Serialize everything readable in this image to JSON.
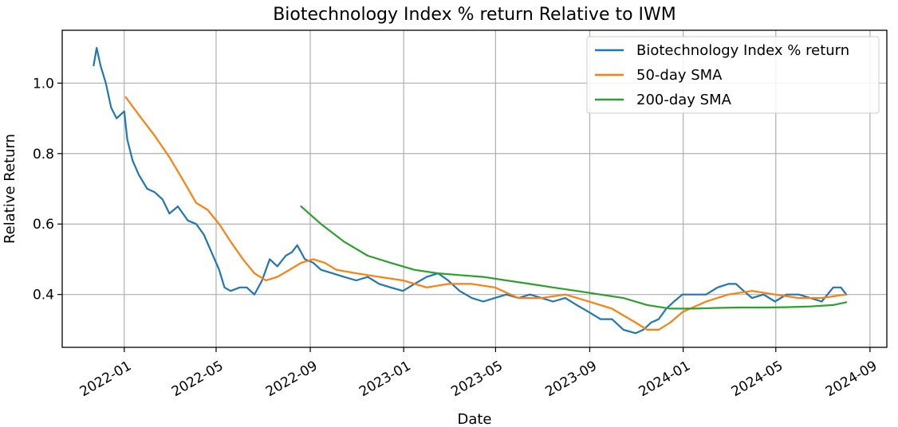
{
  "chart_data": {
    "type": "line",
    "title": "Biotechnology Index % return Relative to IWM",
    "xlabel": "Date",
    "ylabel": "Relative Return",
    "x_ticks": [
      "2022-01",
      "2022-05",
      "2022-09",
      "2023-01",
      "2023-05",
      "2023-09",
      "2024-01",
      "2024-05",
      "2024-09"
    ],
    "y_ticks": [
      0.4,
      0.6,
      0.8,
      1.0
    ],
    "xlim": [
      "2021-10-12",
      "2024-09-23"
    ],
    "ylim": [
      0.25,
      1.15
    ],
    "grid": true,
    "legend_position": "upper-right",
    "colors": {
      "Biotechnology Index % return": "#1f77b4",
      "50-day SMA": "#ff7f0e",
      "200-day SMA": "#2ca02c"
    },
    "series": [
      {
        "name": "Biotechnology Index % return",
        "x": [
          "2021-11-22",
          "2021-11-26",
          "2021-12-01",
          "2021-12-08",
          "2021-12-15",
          "2021-12-22",
          "2022-01-01",
          "2022-01-05",
          "2022-01-12",
          "2022-01-20",
          "2022-01-31",
          "2022-02-10",
          "2022-02-20",
          "2022-03-01",
          "2022-03-12",
          "2022-03-25",
          "2022-04-05",
          "2022-04-15",
          "2022-04-25",
          "2022-05-05",
          "2022-05-12",
          "2022-05-20",
          "2022-06-01",
          "2022-06-10",
          "2022-06-20",
          "2022-06-30",
          "2022-07-10",
          "2022-07-20",
          "2022-07-31",
          "2022-08-08",
          "2022-08-15",
          "2022-08-25",
          "2022-09-05",
          "2022-09-15",
          "2022-09-30",
          "2022-10-15",
          "2022-10-31",
          "2022-11-15",
          "2022-11-30",
          "2022-12-15",
          "2022-12-31",
          "2023-01-15",
          "2023-01-31",
          "2023-02-15",
          "2023-02-28",
          "2023-03-15",
          "2023-03-31",
          "2023-04-15",
          "2023-04-30",
          "2023-05-15",
          "2023-05-31",
          "2023-06-15",
          "2023-06-30",
          "2023-07-15",
          "2023-07-31",
          "2023-08-15",
          "2023-08-31",
          "2023-09-15",
          "2023-09-30",
          "2023-10-15",
          "2023-10-31",
          "2023-11-10",
          "2023-11-20",
          "2023-11-30",
          "2023-12-10",
          "2023-12-20",
          "2023-12-31",
          "2024-01-15",
          "2024-01-31",
          "2024-02-15",
          "2024-02-29",
          "2024-03-10",
          "2024-03-20",
          "2024-03-31",
          "2024-04-15",
          "2024-04-30",
          "2024-05-15",
          "2024-05-31",
          "2024-06-15",
          "2024-06-30",
          "2024-07-15",
          "2024-07-25",
          "2024-08-01"
        ],
        "values": [
          1.05,
          1.1,
          1.05,
          1.0,
          0.93,
          0.9,
          0.92,
          0.84,
          0.78,
          0.74,
          0.7,
          0.69,
          0.67,
          0.63,
          0.65,
          0.61,
          0.6,
          0.57,
          0.52,
          0.47,
          0.42,
          0.41,
          0.42,
          0.42,
          0.4,
          0.44,
          0.5,
          0.48,
          0.51,
          0.52,
          0.54,
          0.5,
          0.49,
          0.47,
          0.46,
          0.45,
          0.44,
          0.45,
          0.43,
          0.42,
          0.41,
          0.43,
          0.45,
          0.46,
          0.44,
          0.41,
          0.39,
          0.38,
          0.39,
          0.4,
          0.39,
          0.4,
          0.39,
          0.38,
          0.39,
          0.37,
          0.35,
          0.33,
          0.33,
          0.3,
          0.29,
          0.3,
          0.32,
          0.33,
          0.36,
          0.38,
          0.4,
          0.4,
          0.4,
          0.42,
          0.43,
          0.43,
          0.41,
          0.39,
          0.4,
          0.38,
          0.4,
          0.4,
          0.39,
          0.38,
          0.42,
          0.42,
          0.4
        ]
      },
      {
        "name": "50-day SMA",
        "x": [
          "2022-01-03",
          "2022-01-20",
          "2022-02-10",
          "2022-03-01",
          "2022-03-20",
          "2022-04-05",
          "2022-04-20",
          "2022-05-05",
          "2022-05-20",
          "2022-06-05",
          "2022-06-20",
          "2022-07-05",
          "2022-07-20",
          "2022-08-05",
          "2022-08-20",
          "2022-09-05",
          "2022-09-20",
          "2022-10-05",
          "2022-10-31",
          "2022-11-30",
          "2022-12-31",
          "2023-01-31",
          "2023-02-28",
          "2023-03-31",
          "2023-04-30",
          "2023-05-31",
          "2023-06-30",
          "2023-07-31",
          "2023-08-31",
          "2023-09-30",
          "2023-10-31",
          "2023-11-15",
          "2023-11-30",
          "2023-12-15",
          "2023-12-31",
          "2024-01-31",
          "2024-02-29",
          "2024-03-31",
          "2024-04-30",
          "2024-05-31",
          "2024-06-30",
          "2024-07-31"
        ],
        "values": [
          0.96,
          0.91,
          0.85,
          0.79,
          0.72,
          0.66,
          0.64,
          0.6,
          0.55,
          0.5,
          0.46,
          0.44,
          0.45,
          0.47,
          0.49,
          0.5,
          0.49,
          0.47,
          0.46,
          0.45,
          0.44,
          0.42,
          0.43,
          0.43,
          0.42,
          0.39,
          0.39,
          0.4,
          0.38,
          0.36,
          0.32,
          0.3,
          0.3,
          0.32,
          0.35,
          0.38,
          0.4,
          0.41,
          0.4,
          0.39,
          0.39,
          0.4
        ]
      },
      {
        "name": "200-day SMA",
        "x": [
          "2022-08-20",
          "2022-09-15",
          "2022-10-15",
          "2022-11-15",
          "2022-12-15",
          "2023-01-15",
          "2023-02-15",
          "2023-03-15",
          "2023-04-15",
          "2023-05-15",
          "2023-06-15",
          "2023-07-15",
          "2023-08-15",
          "2023-09-15",
          "2023-10-15",
          "2023-11-15",
          "2023-12-15",
          "2024-01-15",
          "2024-02-15",
          "2024-03-15",
          "2024-04-15",
          "2024-05-15",
          "2024-06-15",
          "2024-07-15",
          "2024-08-01"
        ],
        "values": [
          0.65,
          0.6,
          0.55,
          0.51,
          0.49,
          0.47,
          0.46,
          0.455,
          0.45,
          0.44,
          0.43,
          0.42,
          0.41,
          0.4,
          0.39,
          0.37,
          0.36,
          0.36,
          0.362,
          0.363,
          0.363,
          0.364,
          0.366,
          0.37,
          0.378
        ]
      }
    ]
  }
}
